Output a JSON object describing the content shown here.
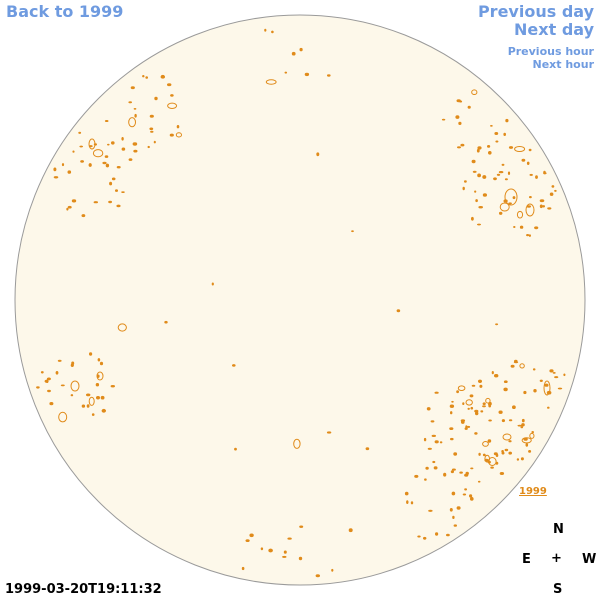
{
  "nav": {
    "back": "Back to 1999",
    "previous_day": "Previous day",
    "next_day": "Next day",
    "previous_hour": "Previous hour",
    "next_hour": "Next hour"
  },
  "compass": {
    "n": "N",
    "e": "E",
    "center": "+",
    "w": "W",
    "s": "S"
  },
  "timestamp": "1999-03-20T19:11:32",
  "year_link": "1999",
  "colors": {
    "disk_fill": "#fdf8ea",
    "disk_edge": "#9a9a9a",
    "contour": "#e08b1a",
    "link": "#6f9be0"
  }
}
